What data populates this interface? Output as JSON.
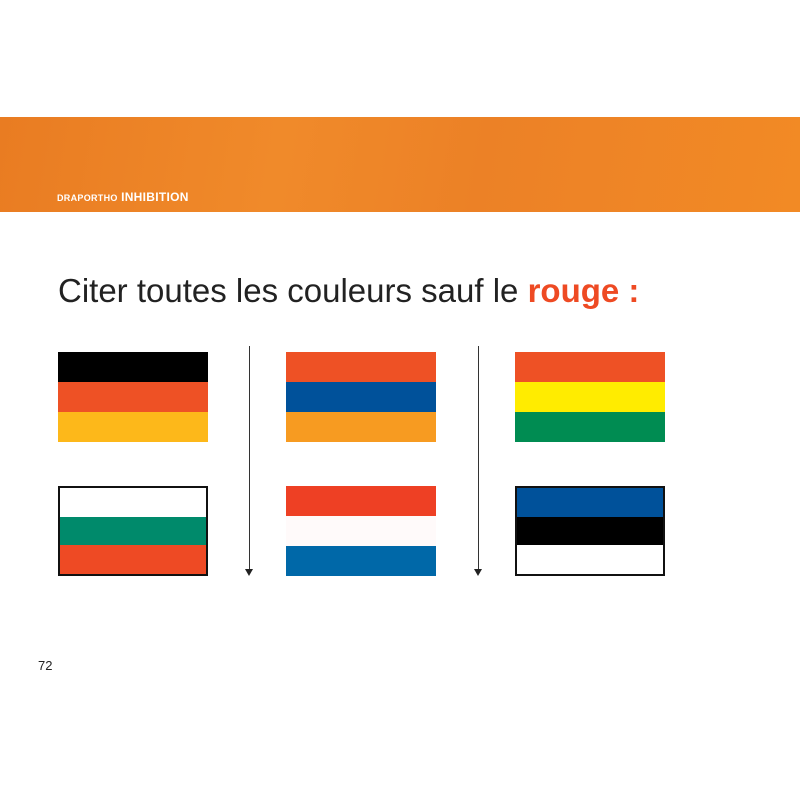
{
  "header": {
    "brand": "DRAPORTHO",
    "section": "INHIBITION",
    "color": "#ee8425"
  },
  "title": {
    "text": "Citer toutes les couleurs sauf le ",
    "highlight": "rouge :",
    "highlight_color": "#ee4a23"
  },
  "flags": [
    {
      "stripes": [
        "#000000",
        "#ee5125",
        "#fdb81a"
      ],
      "bordered": false
    },
    {
      "stripes": [
        "#ee5125",
        "#00519a",
        "#f79b21"
      ],
      "bordered": false
    },
    {
      "stripes": [
        "#ee5125",
        "#ffec00",
        "#008c52"
      ],
      "bordered": false
    },
    {
      "stripes": [
        "#ffffff",
        "#008a6b",
        "#ee4a24"
      ],
      "bordered": true
    },
    {
      "stripes": [
        "#ee4024",
        "#fffafa",
        "#0068a8"
      ],
      "bordered": false
    },
    {
      "stripes": [
        "#00519a",
        "#000000",
        "#ffffff"
      ],
      "bordered": true
    }
  ],
  "page_number": "72"
}
